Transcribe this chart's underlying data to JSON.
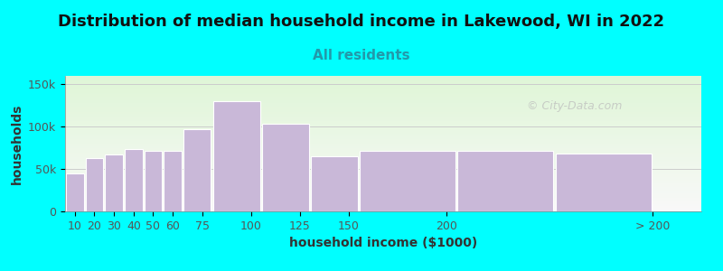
{
  "title": "Distribution of median household income in Lakewood, WI in 2022",
  "subtitle": "All residents",
  "xlabel": "household income ($1000)",
  "ylabel": "households",
  "bg_color": "#00FFFF",
  "bar_color": "#c9b8d8",
  "bar_edge_color": "#ffffff",
  "values": [
    45000,
    63000,
    67000,
    74000,
    72000,
    72000,
    97000,
    130000,
    103000,
    65000,
    72000,
    72000,
    68000
  ],
  "bar_lefts": [
    5,
    15,
    25,
    35,
    45,
    55,
    65,
    80,
    105,
    130,
    155,
    205,
    255
  ],
  "bar_widths": [
    10,
    10,
    10,
    10,
    10,
    10,
    15,
    25,
    25,
    25,
    50,
    50,
    50
  ],
  "xtick_positions": [
    10,
    20,
    30,
    40,
    50,
    60,
    75,
    100,
    125,
    150,
    200,
    305
  ],
  "xtick_labels": [
    "10",
    "20",
    "30",
    "40",
    "50",
    "60",
    "75",
    "100",
    "125",
    "150",
    "200",
    "> 200"
  ],
  "ytick_positions": [
    0,
    50000,
    100000,
    150000
  ],
  "ytick_labels": [
    "0",
    "50k",
    "100k",
    "150k"
  ],
  "ylim": [
    0,
    160000
  ],
  "xlim": [
    5,
    330
  ],
  "title_fontsize": 13,
  "subtitle_fontsize": 11,
  "axis_label_fontsize": 10,
  "tick_fontsize": 9,
  "watermark_text": "© City-Data.com"
}
